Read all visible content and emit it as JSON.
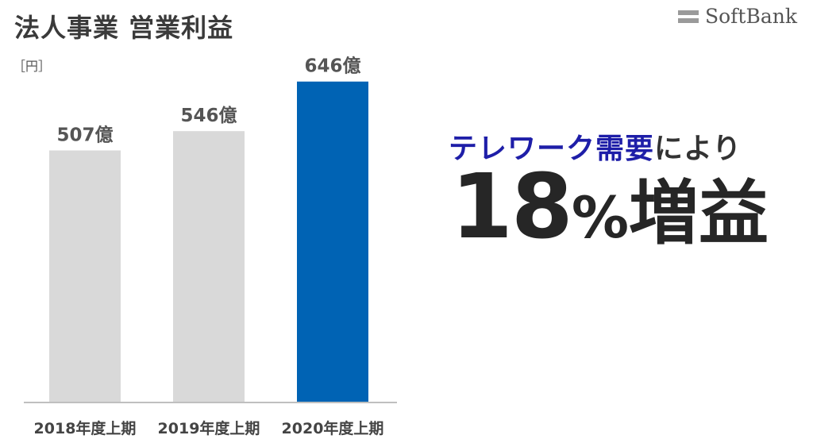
{
  "title": "法人事業 営業利益",
  "logo": {
    "text": "SoftBank"
  },
  "unit_label": "［円］",
  "chart_data": {
    "type": "bar",
    "categories": [
      "2018年度上期",
      "2019年度上期",
      "2020年度上期"
    ],
    "values": [
      507,
      546,
      646
    ],
    "value_labels": [
      "507億",
      "546億",
      "646億"
    ],
    "colors": [
      "#d9d9d9",
      "#d9d9d9",
      "#0063b4"
    ],
    "ylim": [
      0,
      660
    ]
  },
  "callout": {
    "accent": "テレワーク需要",
    "rest": "により",
    "big_number": "18",
    "big_percent": "%",
    "big_suffix": "増益"
  }
}
